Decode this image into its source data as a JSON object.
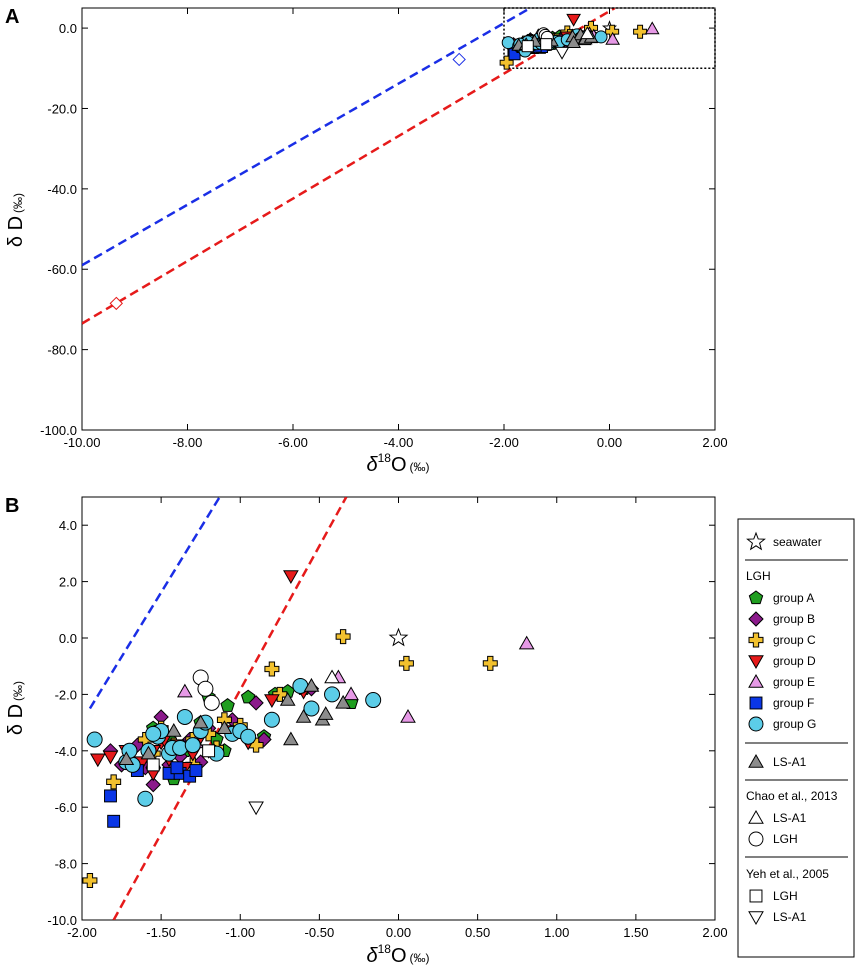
{
  "chart_data": [
    {
      "type": "scatter",
      "panel_label": "A",
      "xlabel_prefix": "δ",
      "xlabel_sup": "18",
      "xlabel_main": "O",
      "xlabel_unit": "(‰)",
      "ylabel_main": "δ D",
      "ylabel_unit": "(‰)",
      "xlim": [
        -10,
        2
      ],
      "ylim": [
        -100,
        5
      ],
      "xticks": [
        "-10.00",
        "-8.00",
        "-6.00",
        "-4.00",
        "-2.00",
        "0.00",
        "2.00"
      ],
      "yticks": [
        "0.0",
        "-20.0",
        "-40.0",
        "-60.0",
        "-80.0",
        "-100.0"
      ],
      "lines": [
        {
          "name": "blue line",
          "color": "#1a2ee6",
          "x": [
            -10,
            -1.5
          ],
          "y": [
            -59,
            5
          ]
        },
        {
          "name": "red line",
          "color": "#e61a1a",
          "x": [
            -10,
            0.1
          ],
          "y": [
            -73.5,
            5
          ]
        }
      ],
      "extra_points": [
        {
          "name": "blue diamond",
          "x": -2.85,
          "y": -7.8,
          "color": "#1a2ee6"
        },
        {
          "name": "red diamond",
          "x": -9.35,
          "y": -68.5,
          "color": "#e61a1a"
        }
      ],
      "zoom_box": {
        "x": [
          -2,
          2
        ],
        "y": [
          -10,
          5
        ]
      }
    },
    {
      "type": "scatter",
      "panel_label": "B",
      "xlabel_prefix": "δ",
      "xlabel_sup": "18",
      "xlabel_main": "O",
      "xlabel_unit": "(‰)",
      "ylabel_main": "δ D",
      "ylabel_unit": "(‰)",
      "xlim": [
        -2,
        2
      ],
      "ylim": [
        -10,
        5
      ],
      "xticks": [
        "-2.00",
        "-1.50",
        "-1.00",
        "-0.50",
        "0.00",
        "0.50",
        "1.00",
        "1.50",
        "2.00"
      ],
      "yticks": [
        "4.0",
        "2.0",
        "0.0",
        "-2.0",
        "-4.0",
        "-6.0",
        "-8.0",
        "-10.0"
      ],
      "lines": [
        {
          "name": "blue line",
          "color": "#1a2ee6",
          "x": [
            -1.95,
            -1.13
          ],
          "y": [
            -2.5,
            5
          ]
        },
        {
          "name": "red line",
          "color": "#e61a1a",
          "x": [
            -1.8,
            -0.33
          ],
          "y": [
            -10,
            5
          ]
        }
      ],
      "series": [
        {
          "name": "seawater",
          "symbol": "star",
          "fill": "#ffffff",
          "points": [
            [
              0.0,
              0.0
            ]
          ]
        },
        {
          "name": "group A",
          "symbol": "pentagon",
          "fill": "#1f9e1f",
          "points": [
            [
              -1.5,
              -3.4
            ],
            [
              -1.45,
              -3.6
            ],
            [
              -1.42,
              -5.0
            ],
            [
              -1.35,
              -4.0
            ],
            [
              -1.3,
              -3.8
            ],
            [
              -1.25,
              -3.0
            ],
            [
              -1.2,
              -2.1
            ],
            [
              -1.15,
              -3.6
            ],
            [
              -1.1,
              -4.0
            ],
            [
              -1.08,
              -2.4
            ],
            [
              -1.0,
              -3.3
            ],
            [
              -0.95,
              -2.1
            ],
            [
              -0.85,
              -3.5
            ],
            [
              -0.78,
              -2.0
            ],
            [
              -0.7,
              -1.9
            ],
            [
              -0.6,
              -1.8
            ],
            [
              -0.3,
              -2.3
            ],
            [
              -1.7,
              -4.1
            ],
            [
              -1.55,
              -3.2
            ]
          ]
        },
        {
          "name": "group B",
          "symbol": "diamond",
          "fill": "#8b1a8b",
          "points": [
            [
              -1.82,
              -4.0
            ],
            [
              -1.75,
              -4.5
            ],
            [
              -1.65,
              -3.8
            ],
            [
              -1.55,
              -5.2
            ],
            [
              -1.5,
              -2.8
            ],
            [
              -1.45,
              -4.5
            ],
            [
              -1.38,
              -4.2
            ],
            [
              -1.32,
              -3.6
            ],
            [
              -1.2,
              -3.2
            ],
            [
              -1.05,
              -2.9
            ],
            [
              -0.9,
              -2.3
            ],
            [
              -0.85,
              -3.6
            ],
            [
              -0.55,
              -1.8
            ],
            [
              -1.6,
              -4.6
            ],
            [
              -1.25,
              -4.4
            ]
          ]
        },
        {
          "name": "group C",
          "symbol": "cross",
          "fill": "#f2c12e",
          "points": [
            [
              -1.95,
              -8.6
            ],
            [
              -1.8,
              -5.1
            ],
            [
              -1.7,
              -4.4
            ],
            [
              -1.5,
              -3.2
            ],
            [
              -1.42,
              -3.8
            ],
            [
              -1.3,
              -4.5
            ],
            [
              -1.2,
              -3.4
            ],
            [
              -1.1,
              -2.9
            ],
            [
              -1.0,
              -3.1
            ],
            [
              -0.9,
              -3.8
            ],
            [
              -0.8,
              -1.1
            ],
            [
              -0.75,
              -2.0
            ],
            [
              -0.35,
              0.05
            ],
            [
              0.05,
              -0.9
            ],
            [
              0.58,
              -0.9
            ],
            [
              -1.6,
              -3.6
            ],
            [
              -1.55,
              -4.1
            ],
            [
              -1.3,
              -3.6
            ],
            [
              -1.15,
              -3.9
            ]
          ]
        },
        {
          "name": "group D",
          "symbol": "tri-down",
          "fill": "#e61a1a",
          "points": [
            [
              -1.9,
              -4.3
            ],
            [
              -1.82,
              -4.2
            ],
            [
              -1.72,
              -4.0
            ],
            [
              -1.62,
              -4.4
            ],
            [
              -1.55,
              -4.8
            ],
            [
              -1.5,
              -3.7
            ],
            [
              -1.45,
              -4.3
            ],
            [
              -1.4,
              -3.8
            ],
            [
              -1.35,
              -4.6
            ],
            [
              -1.3,
              -4.1
            ],
            [
              -1.25,
              -3.5
            ],
            [
              -1.2,
              -4.0
            ],
            [
              -1.05,
              -3.3
            ],
            [
              -0.95,
              -3.7
            ],
            [
              -0.8,
              -2.2
            ],
            [
              -0.68,
              2.2
            ],
            [
              -0.6,
              -1.9
            ],
            [
              -1.55,
              -4.0
            ],
            [
              -1.48,
              -3.6
            ]
          ]
        },
        {
          "name": "group E",
          "symbol": "tri-up",
          "fill": "#e699e6",
          "points": [
            [
              -1.7,
              -4.2
            ],
            [
              -1.55,
              -4.4
            ],
            [
              -1.35,
              -1.9
            ],
            [
              -1.28,
              -3.7
            ],
            [
              -0.38,
              -1.4
            ],
            [
              -0.3,
              -2.0
            ],
            [
              0.06,
              -2.8
            ],
            [
              0.81,
              -0.2
            ]
          ]
        },
        {
          "name": "group F",
          "symbol": "square",
          "fill": "#0a36e6",
          "points": [
            [
              -1.82,
              -5.6
            ],
            [
              -1.8,
              -6.5
            ],
            [
              -1.65,
              -4.7
            ],
            [
              -1.45,
              -4.8
            ],
            [
              -1.38,
              -4.8
            ],
            [
              -1.32,
              -4.9
            ],
            [
              -1.28,
              -4.7
            ],
            [
              -1.4,
              -4.6
            ]
          ]
        },
        {
          "name": "group G",
          "symbol": "circle",
          "fill": "#5ccde8",
          "points": [
            [
              -1.92,
              -3.6
            ],
            [
              -1.72,
              -4.4
            ],
            [
              -1.68,
              -4.5
            ],
            [
              -1.6,
              -5.7
            ],
            [
              -1.58,
              -4.0
            ],
            [
              -1.52,
              -3.5
            ],
            [
              -1.5,
              -3.3
            ],
            [
              -1.45,
              -4.1
            ],
            [
              -1.43,
              -3.9
            ],
            [
              -1.38,
              -3.9
            ],
            [
              -1.35,
              -2.8
            ],
            [
              -1.3,
              -3.8
            ],
            [
              -1.25,
              -3.3
            ],
            [
              -1.22,
              -3.0
            ],
            [
              -1.15,
              -4.1
            ],
            [
              -1.05,
              -3.4
            ],
            [
              -1.0,
              -3.3
            ],
            [
              -0.95,
              -3.5
            ],
            [
              -0.8,
              -2.9
            ],
            [
              -0.62,
              -1.7
            ],
            [
              -0.55,
              -2.5
            ],
            [
              -0.42,
              -2.0
            ],
            [
              -0.16,
              -2.2
            ],
            [
              -1.55,
              -3.4
            ],
            [
              -1.7,
              -4.0
            ]
          ]
        },
        {
          "name": "LS-A1",
          "symbol": "tri-up",
          "fill": "#8c8c8c",
          "points": [
            [
              -1.72,
              -4.3
            ],
            [
              -1.58,
              -4.1
            ],
            [
              -1.25,
              -3.0
            ],
            [
              -1.1,
              -3.2
            ],
            [
              -0.7,
              -2.2
            ],
            [
              -0.6,
              -2.8
            ],
            [
              -0.55,
              -1.7
            ],
            [
              -0.48,
              -2.9
            ],
            [
              -0.46,
              -2.7
            ],
            [
              -0.35,
              -2.3
            ],
            [
              -1.42,
              -3.3
            ],
            [
              -0.68,
              -3.6
            ]
          ]
        },
        {
          "name": "Chao LS-A1",
          "symbol": "tri-up",
          "fill": "#ffffff",
          "points": [
            [
              -0.42,
              -1.4
            ]
          ]
        },
        {
          "name": "Chao LGH",
          "symbol": "circle",
          "fill": "#ffffff",
          "points": [
            [
              -1.25,
              -1.4
            ],
            [
              -1.22,
              -1.8
            ],
            [
              -1.18,
              -2.3
            ]
          ]
        },
        {
          "name": "Yeh LGH",
          "symbol": "square",
          "fill": "#ffffff",
          "points": [
            [
              -1.2,
              -4.0
            ],
            [
              -1.55,
              -4.5
            ]
          ]
        },
        {
          "name": "Yeh LS-A1",
          "symbol": "tri-down",
          "fill": "#ffffff",
          "points": [
            [
              -0.9,
              -6.0
            ]
          ]
        }
      ]
    }
  ],
  "legend": {
    "seawater": "seawater",
    "lgh_header": "LGH",
    "group_a": "group A",
    "group_b": "group B",
    "group_c": "group C",
    "group_d": "group D",
    "group_e": "group E",
    "group_f": "group F",
    "group_g": "group G",
    "ls_a1": "LS-A1",
    "chao_header": "Chao et al., 2013",
    "chao_ls": "LS-A1",
    "chao_lgh": "LGH",
    "yeh_header": "Yeh et al., 2005",
    "yeh_lgh": "LGH",
    "yeh_ls": "LS-A1"
  }
}
